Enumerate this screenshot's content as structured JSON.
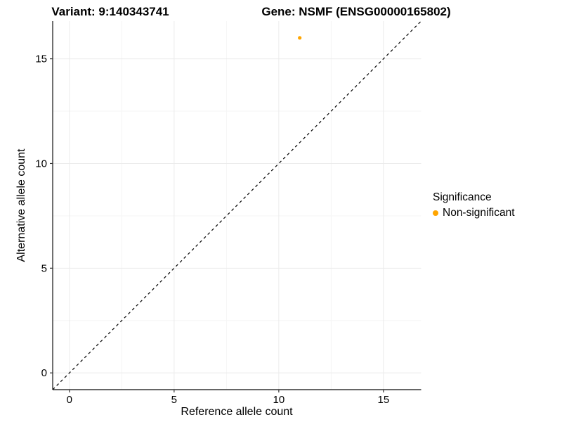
{
  "chart_data": {
    "type": "scatter",
    "title_left": "Variant: 9:140343741",
    "title_right": "Gene: NSMF (ENSG00000165802)",
    "xlabel": "Reference allele count",
    "ylabel": "Alternative allele count",
    "xlim": [
      -0.8,
      16.8
    ],
    "ylim": [
      -0.8,
      16.8
    ],
    "x_ticks": [
      0,
      5,
      10,
      15
    ],
    "y_ticks": [
      0,
      5,
      10,
      15
    ],
    "x_minor_ticks": [
      2.5,
      7.5,
      12.5
    ],
    "y_minor_ticks": [
      2.5,
      7.5,
      12.5
    ],
    "grid": true,
    "legend_position": "right",
    "series": [
      {
        "name": "Non-significant",
        "color": "#FFA500",
        "points": [
          {
            "x": 11,
            "y": 16
          }
        ]
      }
    ],
    "reference_line": {
      "type": "identity",
      "style": "dashed",
      "color": "#000000"
    },
    "style": {
      "axis_line_color": "#333333",
      "tick_color": "#333333",
      "major_grid_color": "#ebebeb",
      "minor_grid_color": "#f5f5f5",
      "background": "#ffffff",
      "point_radius_px": 2.6,
      "legend_point_radius_px": 4
    }
  },
  "legend": {
    "title": "Significance",
    "items": [
      {
        "label": "Non-significant",
        "color": "#FFA500"
      }
    ]
  }
}
